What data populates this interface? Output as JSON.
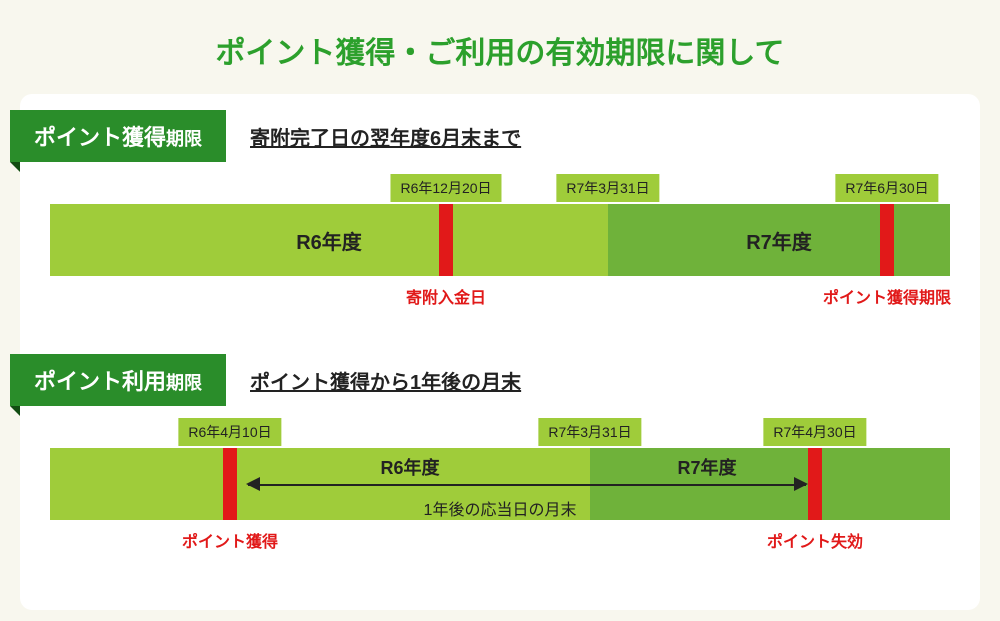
{
  "title": "ポイント獲得・ご利用の有効期限に関して",
  "colors": {
    "background": "#f8f7ee",
    "card": "#ffffff",
    "title": "#2ca02c",
    "ribbon": "#2a8d2a",
    "ribbon_fold": "#124d12",
    "bar_light": "#9fcc3a",
    "bar_dark": "#6fb23a",
    "redline": "#e11919",
    "text": "#222222"
  },
  "section1": {
    "ribbon_main": "ポイント獲得",
    "ribbon_small": "期限",
    "subtitle": "寄附完了日の翌年度6月末まで",
    "bar": {
      "light_start_pct": 0,
      "light_end_pct": 62,
      "dark_start_pct": 62,
      "dark_end_pct": 100,
      "light_label": "R6年度",
      "dark_label": "R7年度"
    },
    "dates": [
      {
        "pos_pct": 44,
        "text": "R6年12月20日",
        "below": "寄附入金日"
      },
      {
        "pos_pct": 62,
        "text": "R7年3月31日",
        "below": null
      },
      {
        "pos_pct": 93,
        "text": "R7年6月30日",
        "below": "ポイント獲得期限"
      }
    ],
    "redlines": [
      {
        "pos_pct": 44
      },
      {
        "pos_pct": 93
      }
    ]
  },
  "section2": {
    "ribbon_main": "ポイント利用",
    "ribbon_small": "期限",
    "subtitle": "ポイント獲得から1年後の月末",
    "bar": {
      "light_start_pct": 0,
      "light_end_pct": 60,
      "dark_start_pct": 60,
      "dark_end_pct": 100,
      "light_label": "R6年度",
      "light_label_pos_pct": 40,
      "dark_label": "R7年度",
      "dark_label_pos_pct": 73
    },
    "dates": [
      {
        "pos_pct": 20,
        "text": "R6年4月10日",
        "below": "ポイント獲得"
      },
      {
        "pos_pct": 60,
        "text": "R7年3月31日",
        "below": null
      },
      {
        "pos_pct": 85,
        "text": "R7年4月30日",
        "below": "ポイント失効"
      }
    ],
    "redlines": [
      {
        "pos_pct": 20
      },
      {
        "pos_pct": 85
      }
    ],
    "arrow": {
      "start_pct": 22,
      "end_pct": 84,
      "caption": "1年後の応当日の月末"
    }
  }
}
